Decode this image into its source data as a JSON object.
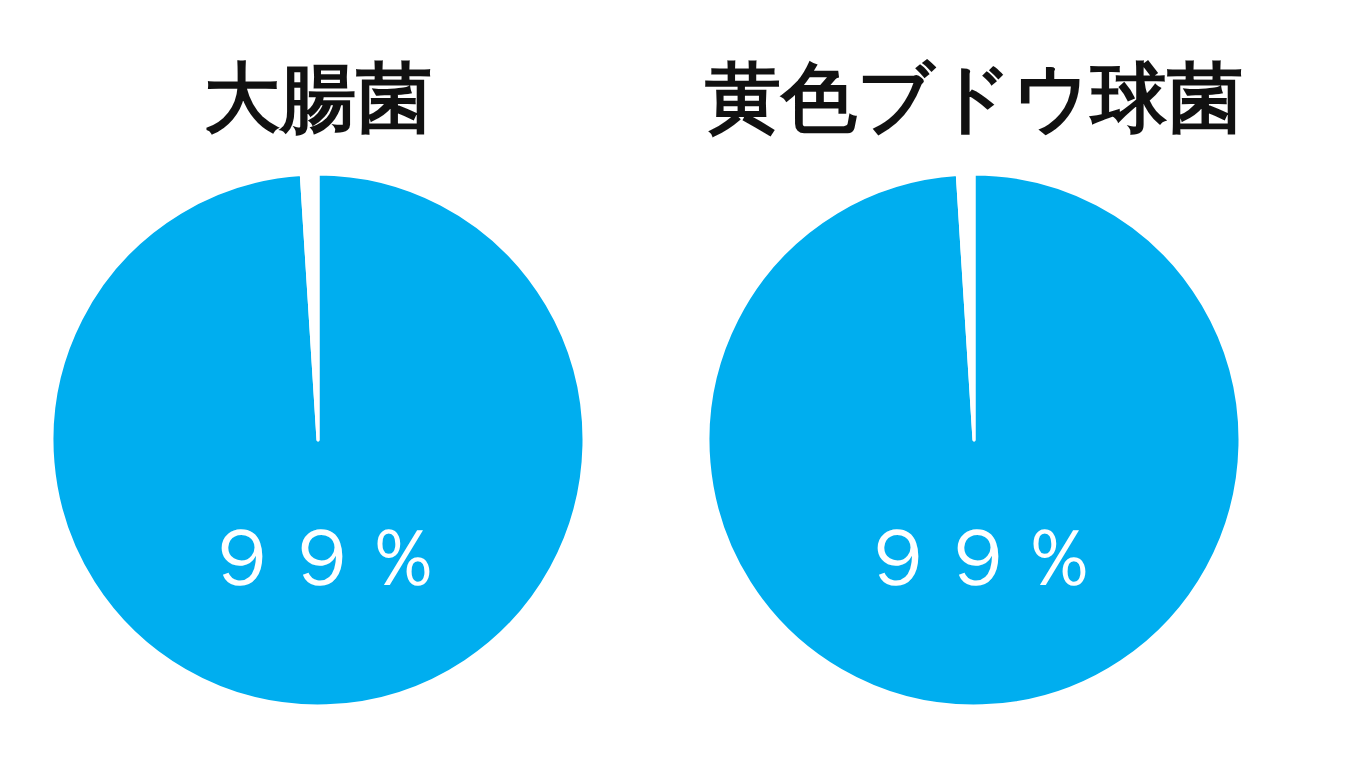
{
  "chart_data": [
    {
      "type": "pie",
      "title": "大腸菌",
      "categories": [
        null,
        null
      ],
      "values": [
        99,
        1
      ],
      "colors": [
        "#00aeef",
        "#ffffff"
      ],
      "value_labels": [
        "９９％",
        null
      ]
    },
    {
      "type": "pie",
      "title": "黄色ブドウ球菌",
      "categories": [
        null,
        null
      ],
      "values": [
        99,
        1
      ],
      "colors": [
        "#00aeef",
        "#ffffff"
      ],
      "value_labels": [
        "９９％",
        null
      ]
    }
  ]
}
